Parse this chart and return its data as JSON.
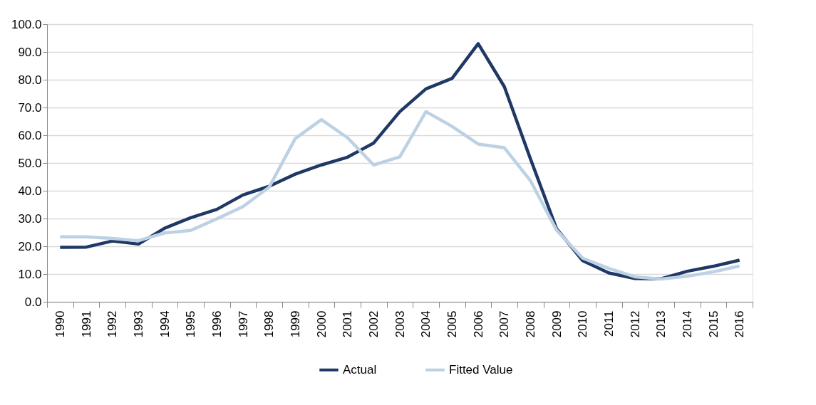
{
  "chart_data": {
    "type": "line",
    "categories": [
      "1990",
      "1991",
      "1992",
      "1993",
      "1994",
      "1995",
      "1996",
      "1997",
      "1998",
      "1999",
      "2000",
      "2001",
      "2002",
      "2003",
      "2004",
      "2005",
      "2006",
      "2007",
      "2008",
      "2009",
      "2010",
      "2011",
      "2012",
      "2013",
      "2014",
      "2015",
      "2016"
    ],
    "series": [
      {
        "name": "Actual",
        "color": "#1f3864",
        "values": [
          19.6,
          19.7,
          21.9,
          20.8,
          26.5,
          30.3,
          33.3,
          38.5,
          41.6,
          46.0,
          49.3,
          52.1,
          57.2,
          68.5,
          76.7,
          80.5,
          93.0,
          77.5,
          51.5,
          26.3,
          14.8,
          10.4,
          8.4,
          8.3,
          11.0,
          12.8,
          15.0
        ]
      },
      {
        "name": "Fitted Value",
        "color": "#bdd1e4",
        "values": [
          23.4,
          23.4,
          22.8,
          22.0,
          24.8,
          25.7,
          29.9,
          34.3,
          41.3,
          58.8,
          65.6,
          59.1,
          49.3,
          52.2,
          68.5,
          63.2,
          56.8,
          55.5,
          43.6,
          25.8,
          15.7,
          12.0,
          9.0,
          8.2,
          9.2,
          10.8,
          12.9
        ]
      }
    ],
    "ylim": [
      0,
      100
    ],
    "yticks": [
      {
        "value": 0,
        "label": "0.0"
      },
      {
        "value": 10,
        "label": "10.0"
      },
      {
        "value": 20,
        "label": "20.0"
      },
      {
        "value": 30,
        "label": "30.0"
      },
      {
        "value": 40,
        "label": "40.0"
      },
      {
        "value": 50,
        "label": "50.0"
      },
      {
        "value": 60,
        "label": "60.0"
      },
      {
        "value": 70,
        "label": "70.0"
      },
      {
        "value": 80,
        "label": "80.0"
      },
      {
        "value": 90,
        "label": "90.0"
      },
      {
        "value": 100,
        "label": "100.0"
      }
    ],
    "grid": "y",
    "legend": "bottom",
    "marker": "none",
    "line_style": "solid"
  }
}
